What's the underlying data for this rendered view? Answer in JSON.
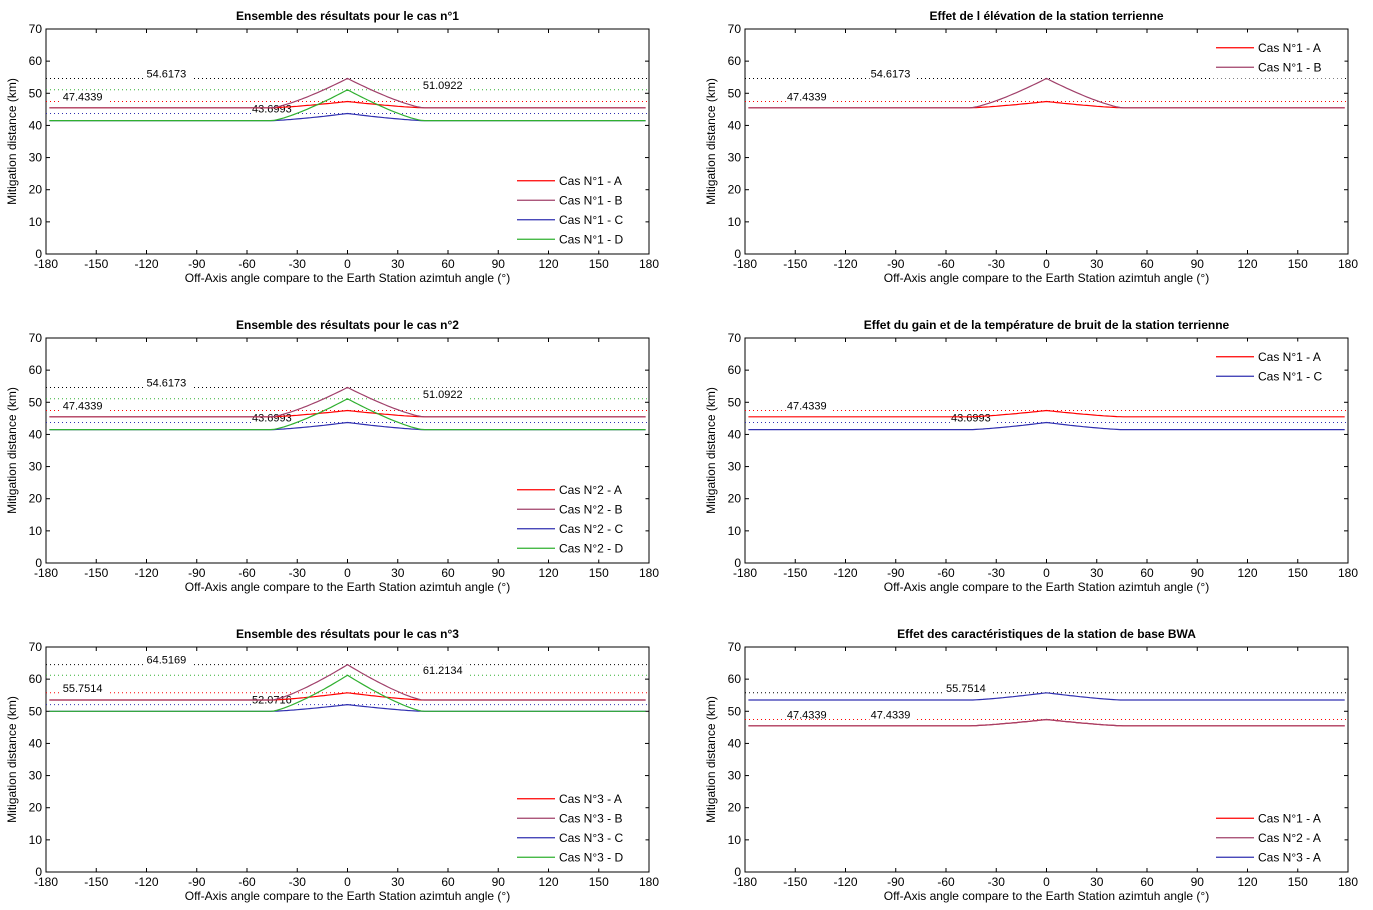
{
  "chart_data": [
    {
      "type": "line",
      "title": "Ensemble des résultats pour le cas n°1",
      "xlabel": "Off-Axis angle compare to the Earth Station azimtuh angle (°)",
      "ylabel": "Mitigation distance  (km)",
      "xlim": [
        -180,
        180
      ],
      "ylim": [
        0,
        70
      ],
      "xticks": [
        -180,
        -150,
        -120,
        -90,
        -60,
        -30,
        0,
        30,
        60,
        90,
        120,
        150,
        180
      ],
      "yticks": [
        0,
        10,
        20,
        30,
        40,
        50,
        60,
        70
      ],
      "grid": false,
      "legend_position": "lower-right",
      "series": [
        {
          "name": "Cas N°1 - A",
          "color": "#ff0000",
          "base": 45.5,
          "peak": 47.4339,
          "width": 45
        },
        {
          "name": "Cas N°1 - B",
          "color": "#a0406a",
          "base": 45.5,
          "peak": 54.6173,
          "width": 45
        },
        {
          "name": "Cas N°1 - C",
          "color": "#3030b0",
          "base": 41.5,
          "peak": 43.6993,
          "width": 45
        },
        {
          "name": "Cas N°1 - D",
          "color": "#30b030",
          "base": 41.5,
          "peak": 51.0922,
          "width": 45
        }
      ],
      "ref_lines": [
        {
          "value": 54.6173,
          "color": "#000000",
          "label": "54.6173",
          "label_x": -120
        },
        {
          "value": 51.0922,
          "color": "#30b030",
          "label": "51.0922",
          "label_x": 45
        },
        {
          "value": 47.4339,
          "color": "#ff0000",
          "label": "47.4339",
          "label_x": -170
        },
        {
          "value": 43.6993,
          "color": "#3030b0",
          "label": "43.6993",
          "label_x": -57
        }
      ]
    },
    {
      "type": "line",
      "title": "Effet de l élévation de la station terrienne",
      "xlabel": "Off-Axis angle compare to the Earth Station azimtuh angle (°)",
      "ylabel": "Mitigation distance  (km)",
      "xlim": [
        -180,
        180
      ],
      "ylim": [
        0,
        70
      ],
      "xticks": [
        -180,
        -150,
        -120,
        -90,
        -60,
        -30,
        0,
        30,
        60,
        90,
        120,
        150,
        180
      ],
      "yticks": [
        0,
        10,
        20,
        30,
        40,
        50,
        60,
        70
      ],
      "grid": false,
      "legend_position": "upper-right",
      "series": [
        {
          "name": "Cas N°1 - A",
          "color": "#ff0000",
          "base": 45.5,
          "peak": 47.4339,
          "width": 45
        },
        {
          "name": "Cas N°1 - B",
          "color": "#a0406a",
          "base": 45.5,
          "peak": 54.6173,
          "width": 45
        }
      ],
      "ref_lines": [
        {
          "value": 54.6173,
          "color": "#000000",
          "label": "54.6173",
          "label_x": -105
        },
        {
          "value": 47.4339,
          "color": "#ff0000",
          "label": "47.4339",
          "label_x": -155
        }
      ]
    },
    {
      "type": "line",
      "title": "Ensemble des résultats pour le cas n°2",
      "xlabel": "Off-Axis angle compare to the Earth Station azimtuh angle (°)",
      "ylabel": "Mitigation distance  (km)",
      "xlim": [
        -180,
        180
      ],
      "ylim": [
        0,
        70
      ],
      "xticks": [
        -180,
        -150,
        -120,
        -90,
        -60,
        -30,
        0,
        30,
        60,
        90,
        120,
        150,
        180
      ],
      "yticks": [
        0,
        10,
        20,
        30,
        40,
        50,
        60,
        70
      ],
      "grid": false,
      "legend_position": "lower-right",
      "series": [
        {
          "name": "Cas N°2 - A",
          "color": "#ff0000",
          "base": 45.5,
          "peak": 47.4339,
          "width": 45
        },
        {
          "name": "Cas N°2 - B",
          "color": "#a0406a",
          "base": 45.5,
          "peak": 54.6173,
          "width": 45
        },
        {
          "name": "Cas N°2 - C",
          "color": "#3030b0",
          "base": 41.5,
          "peak": 43.6993,
          "width": 45
        },
        {
          "name": "Cas N°2 - D",
          "color": "#30b030",
          "base": 41.5,
          "peak": 51.0922,
          "width": 45
        }
      ],
      "ref_lines": [
        {
          "value": 54.6173,
          "color": "#000000",
          "label": "54.6173",
          "label_x": -120
        },
        {
          "value": 51.0922,
          "color": "#30b030",
          "label": "51.0922",
          "label_x": 45
        },
        {
          "value": 47.4339,
          "color": "#ff0000",
          "label": "47.4339",
          "label_x": -170
        },
        {
          "value": 43.6993,
          "color": "#3030b0",
          "label": "43.6993",
          "label_x": -57
        }
      ]
    },
    {
      "type": "line",
      "title": "Effet du gain et de la température de bruit de la station terrienne",
      "xlabel": "Off-Axis angle compare to the Earth Station azimtuh angle (°)",
      "ylabel": "Mitigation distance  (km)",
      "xlim": [
        -180,
        180
      ],
      "ylim": [
        0,
        70
      ],
      "xticks": [
        -180,
        -150,
        -120,
        -90,
        -60,
        -30,
        0,
        30,
        60,
        90,
        120,
        150,
        180
      ],
      "yticks": [
        0,
        10,
        20,
        30,
        40,
        50,
        60,
        70
      ],
      "grid": false,
      "legend_position": "upper-right",
      "series": [
        {
          "name": "Cas N°1 - A",
          "color": "#ff0000",
          "base": 45.5,
          "peak": 47.4339,
          "width": 45
        },
        {
          "name": "Cas N°1 - C",
          "color": "#3030b0",
          "base": 41.5,
          "peak": 43.6993,
          "width": 45
        }
      ],
      "ref_lines": [
        {
          "value": 47.4339,
          "color": "#ff0000",
          "label": "47.4339",
          "label_x": -155
        },
        {
          "value": 43.6993,
          "color": "#3030b0",
          "label": "43.6993",
          "label_x": -57
        }
      ]
    },
    {
      "type": "line",
      "title": "Ensemble des résultats pour le cas n°3",
      "xlabel": "Off-Axis angle compare to the Earth Station azimtuh angle (°)",
      "ylabel": "Mitigation distance  (km)",
      "xlim": [
        -180,
        180
      ],
      "ylim": [
        0,
        70
      ],
      "xticks": [
        -180,
        -150,
        -120,
        -90,
        -60,
        -30,
        0,
        30,
        60,
        90,
        120,
        150,
        180
      ],
      "yticks": [
        0,
        10,
        20,
        30,
        40,
        50,
        60,
        70
      ],
      "grid": false,
      "legend_position": "lower-right",
      "series": [
        {
          "name": "Cas N°3 - A",
          "color": "#ff0000",
          "base": 53.5,
          "peak": 55.7514,
          "width": 45
        },
        {
          "name": "Cas N°3 - B",
          "color": "#a0406a",
          "base": 53.5,
          "peak": 64.5169,
          "width": 45
        },
        {
          "name": "Cas N°3 - C",
          "color": "#3030b0",
          "base": 50,
          "peak": 52.0716,
          "width": 45
        },
        {
          "name": "Cas N°3 - D",
          "color": "#30b030",
          "base": 50,
          "peak": 61.2134,
          "width": 45
        }
      ],
      "ref_lines": [
        {
          "value": 64.5169,
          "color": "#000000",
          "label": "64.5169",
          "label_x": -120
        },
        {
          "value": 61.2134,
          "color": "#30b030",
          "label": "61.2134",
          "label_x": 45
        },
        {
          "value": 55.7514,
          "color": "#ff0000",
          "label": "55.7514",
          "label_x": -170
        },
        {
          "value": 52.0716,
          "color": "#3030b0",
          "label": "52.0716",
          "label_x": -57
        }
      ]
    },
    {
      "type": "line",
      "title": "Effet des caractéristiques de la station de base BWA",
      "xlabel": "Off-Axis angle compare to the Earth Station azimtuh angle (°)",
      "ylabel": "Mitigation distance  (km)",
      "xlim": [
        -180,
        180
      ],
      "ylim": [
        0,
        70
      ],
      "xticks": [
        -180,
        -150,
        -120,
        -90,
        -60,
        -30,
        0,
        30,
        60,
        90,
        120,
        150,
        180
      ],
      "yticks": [
        0,
        10,
        20,
        30,
        40,
        50,
        60,
        70
      ],
      "grid": false,
      "legend_position": "lower-right",
      "series": [
        {
          "name": "Cas N°1 - A",
          "color": "#ff0000",
          "base": 45.5,
          "peak": 47.4339,
          "width": 45
        },
        {
          "name": "Cas N°2 - A",
          "color": "#a0406a",
          "base": 45.5,
          "peak": 47.4339,
          "width": 45
        },
        {
          "name": "Cas N°3 - A",
          "color": "#3030b0",
          "base": 53.5,
          "peak": 55.7514,
          "width": 45
        }
      ],
      "ref_lines": [
        {
          "value": 55.7514,
          "color": "#000000",
          "label": "55.7514",
          "label_x": -60
        },
        {
          "value": 47.4339,
          "color": "#ff0000",
          "label": "47.4339",
          "label_x": -155
        },
        {
          "value": 47.4339,
          "color": "#ff0000",
          "label": "47.4339",
          "label_x": -105
        }
      ]
    }
  ]
}
